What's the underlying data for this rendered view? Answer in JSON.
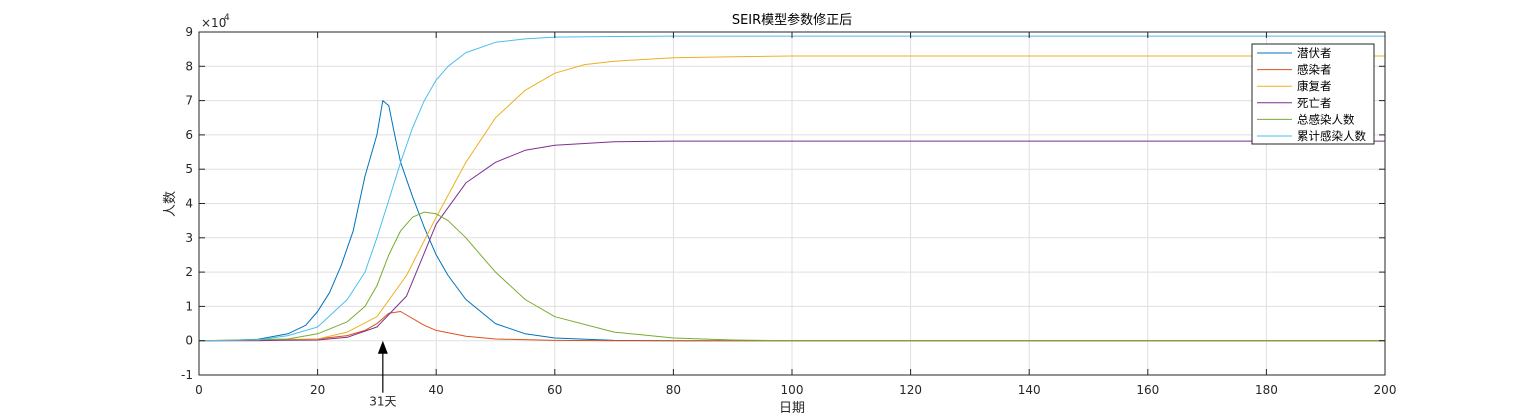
{
  "chart_data": {
    "type": "line",
    "title": "SEIR模型参数修正后",
    "xlabel": "日期",
    "ylabel": "人数",
    "y_exponent_label": "×10",
    "y_exponent_power": "4",
    "xlim": [
      0,
      200
    ],
    "ylim": [
      -1,
      9
    ],
    "x_ticks": [
      0,
      20,
      40,
      60,
      80,
      100,
      120,
      140,
      160,
      180,
      200
    ],
    "y_ticks": [
      -1,
      0,
      1,
      2,
      3,
      4,
      5,
      6,
      7,
      8,
      9
    ],
    "grid": true,
    "legend_position": "top-right",
    "annotation": {
      "text": "31天",
      "x": 31,
      "y": 0
    },
    "series": [
      {
        "name": "潜伏者",
        "color": "#0072BD",
        "x": [
          0,
          5,
          10,
          15,
          18,
          20,
          22,
          24,
          26,
          28,
          30,
          31,
          32,
          33,
          34,
          36,
          38,
          40,
          42,
          45,
          50,
          55,
          60,
          70,
          80,
          200
        ],
        "y": [
          0,
          0.01,
          0.04,
          0.2,
          0.45,
          0.85,
          1.4,
          2.2,
          3.2,
          4.8,
          6.0,
          7.0,
          6.85,
          6.0,
          5.2,
          4.2,
          3.3,
          2.5,
          1.9,
          1.2,
          0.5,
          0.2,
          0.08,
          0.01,
          0,
          0
        ]
      },
      {
        "name": "感染者",
        "color": "#D95319",
        "x": [
          0,
          10,
          20,
          25,
          28,
          30,
          32,
          34,
          35,
          38,
          40,
          45,
          50,
          60,
          70,
          200
        ],
        "y": [
          0,
          0,
          0.05,
          0.15,
          0.3,
          0.5,
          0.8,
          0.85,
          0.75,
          0.45,
          0.3,
          0.13,
          0.05,
          0.01,
          0,
          0
        ]
      },
      {
        "name": "康复者",
        "color": "#EDB120",
        "x": [
          0,
          20,
          25,
          30,
          35,
          40,
          45,
          50,
          55,
          60,
          65,
          70,
          80,
          90,
          100,
          200
        ],
        "y": [
          0,
          0.05,
          0.25,
          0.7,
          1.9,
          3.6,
          5.2,
          6.5,
          7.3,
          7.8,
          8.05,
          8.15,
          8.25,
          8.28,
          8.3,
          8.3
        ]
      },
      {
        "name": "死亡者",
        "color": "#7E2F8E",
        "x": [
          0,
          20,
          25,
          30,
          35,
          40,
          45,
          50,
          55,
          60,
          70,
          80,
          200
        ],
        "y": [
          0,
          0.02,
          0.1,
          0.4,
          1.3,
          3.4,
          4.6,
          5.2,
          5.55,
          5.7,
          5.8,
          5.82,
          5.82
        ]
      },
      {
        "name": "总感染人数",
        "color": "#77AC30",
        "x": [
          0,
          15,
          20,
          25,
          28,
          30,
          32,
          34,
          36,
          38,
          40,
          42,
          45,
          48,
          50,
          55,
          60,
          70,
          80,
          90,
          100,
          200
        ],
        "y": [
          0,
          0.05,
          0.2,
          0.55,
          1.0,
          1.6,
          2.5,
          3.2,
          3.6,
          3.75,
          3.7,
          3.5,
          3.0,
          2.4,
          2.0,
          1.2,
          0.7,
          0.25,
          0.08,
          0.02,
          0,
          0
        ]
      },
      {
        "name": "累计感染人数",
        "color": "#4DBEEE",
        "x": [
          0,
          10,
          15,
          20,
          25,
          28,
          30,
          32,
          34,
          36,
          38,
          40,
          42,
          45,
          50,
          55,
          60,
          70,
          80,
          100,
          200
        ],
        "y": [
          0,
          0.02,
          0.15,
          0.4,
          1.2,
          2.0,
          3.0,
          4.1,
          5.2,
          6.2,
          7.0,
          7.6,
          8.0,
          8.4,
          8.7,
          8.8,
          8.85,
          8.87,
          8.88,
          8.88,
          8.88
        ]
      }
    ]
  }
}
